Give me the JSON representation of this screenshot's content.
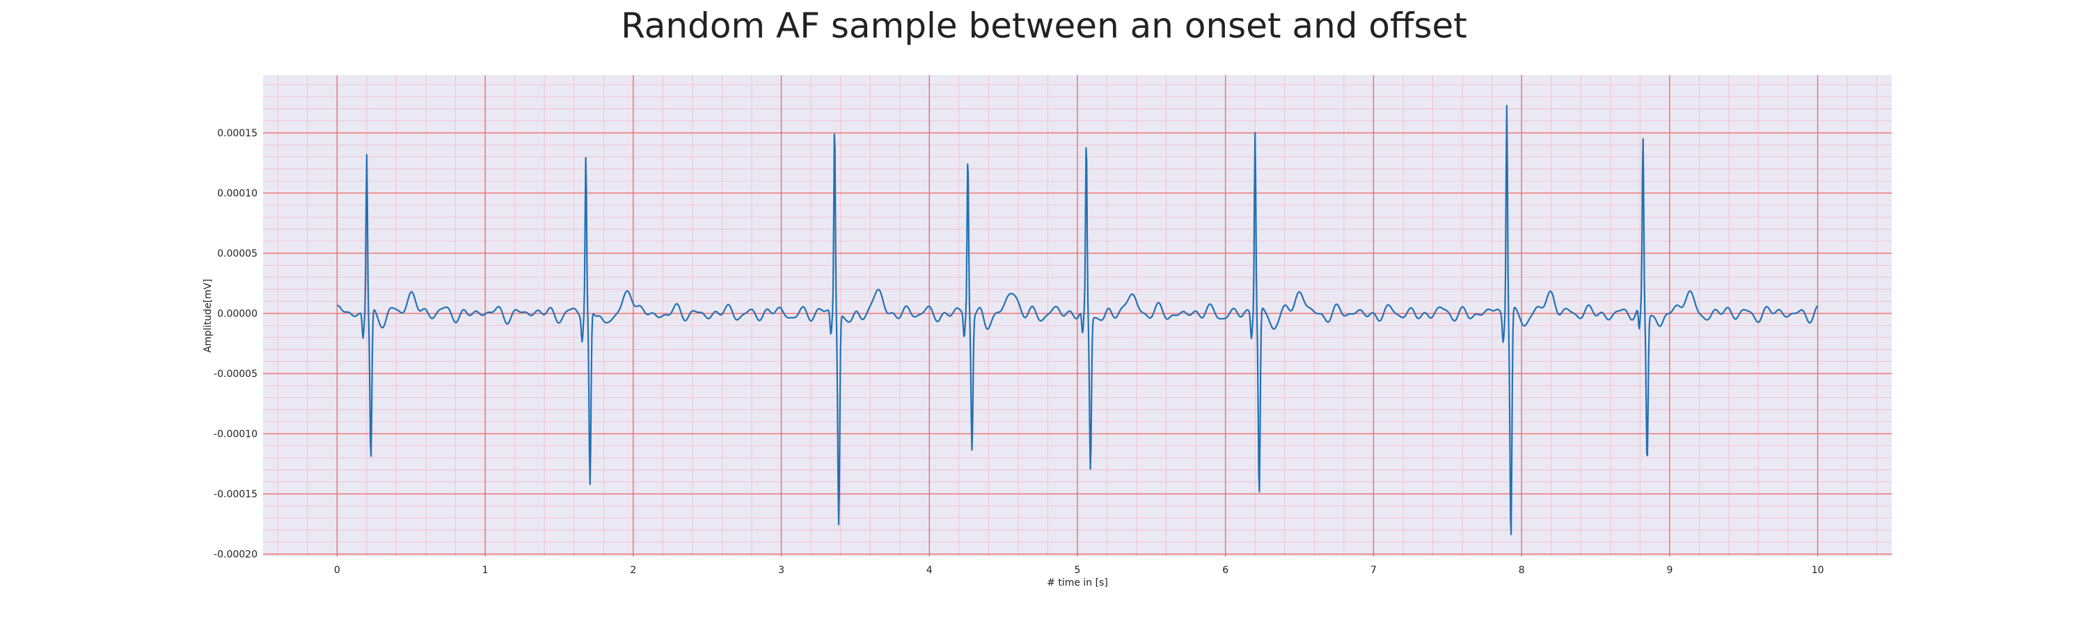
{
  "chart_data": {
    "type": "line",
    "title": "Random AF sample between an onset and offset",
    "xlabel": "# time in [s]",
    "ylabel": "Amplitude[mV]",
    "xlim": [
      -0.5,
      10.5
    ],
    "ylim": [
      -0.000202,
      0.000198
    ],
    "x_ticks": [
      0,
      1,
      2,
      3,
      4,
      5,
      6,
      7,
      8,
      9,
      10
    ],
    "x_tick_labels": [
      "0",
      "1",
      "2",
      "3",
      "4",
      "5",
      "6",
      "7",
      "8",
      "9",
      "10"
    ],
    "y_ticks": [
      0.00015,
      0.0001,
      5e-05,
      0.0,
      -5e-05,
      -0.0001,
      -0.00015,
      -0.0002
    ],
    "y_tick_labels": [
      "0.00015",
      "0.00010",
      "0.00005",
      "0.00000",
      "-0.00005",
      "-0.00010",
      "-0.00015",
      "-0.00020"
    ],
    "grid": true,
    "colors": {
      "background": "#eae8f3",
      "major_grid": "#f06a6a",
      "minor_grid": "#f2b9c8",
      "line": "#2171b5"
    },
    "series": [
      {
        "beats": [
          {
            "t": 0.2,
            "peak": 0.000134,
            "trough": -0.000123
          },
          {
            "t": 1.68,
            "peak": 0.000131,
            "trough": -0.000146
          },
          {
            "t": 3.36,
            "peak": 0.000159,
            "trough": -0.000174
          },
          {
            "t": 4.26,
            "peak": 0.000132,
            "trough": -0.000111
          },
          {
            "t": 5.06,
            "peak": 0.000143,
            "trough": -0.000127
          },
          {
            "t": 6.2,
            "peak": 0.000152,
            "trough": -0.000155
          },
          {
            "t": 7.9,
            "peak": 0.00018,
            "trough": -0.000188
          },
          {
            "t": 8.82,
            "peak": 0.000143,
            "trough": -0.000122
          }
        ]
      }
    ]
  }
}
